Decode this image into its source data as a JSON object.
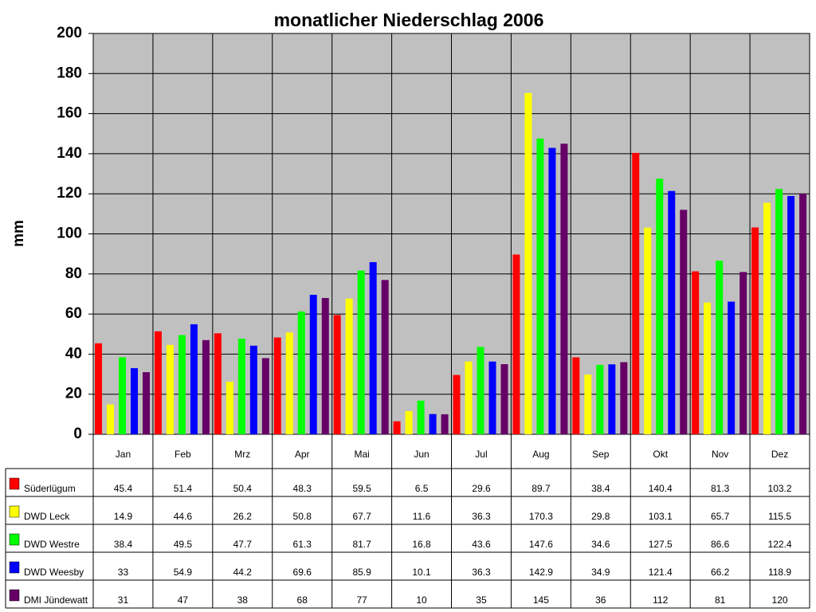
{
  "chart_data": {
    "type": "bar",
    "title": "monatlicher Niederschlag 2006",
    "y_label": "mm",
    "categories": [
      "Jan",
      "Feb",
      "Mrz",
      "Apr",
      "Mai",
      "Jun",
      "Jul",
      "Aug",
      "Sep",
      "Okt",
      "Nov",
      "Dez"
    ],
    "series": [
      {
        "name": "Süderlügum",
        "color": "#ff0000",
        "values": [
          45.4,
          51.4,
          50.4,
          48.3,
          59.5,
          6.5,
          29.6,
          89.7,
          38.4,
          140.4,
          81.3,
          103.2
        ]
      },
      {
        "name": "DWD Leck",
        "color": "#ffff00",
        "values": [
          14.9,
          44.6,
          26.2,
          50.8,
          67.7,
          11.6,
          36.3,
          170.3,
          29.8,
          103.1,
          65.7,
          115.5
        ]
      },
      {
        "name": "DWD Westre",
        "color": "#00ff00",
        "values": [
          38.4,
          49.5,
          47.7,
          61.3,
          81.7,
          16.8,
          43.6,
          147.6,
          34.6,
          127.5,
          86.6,
          122.4
        ]
      },
      {
        "name": "DWD Weesby",
        "color": "#0000ff",
        "values": [
          33,
          54.9,
          44.2,
          69.6,
          85.9,
          10.1,
          36.3,
          142.9,
          34.9,
          121.4,
          66.2,
          118.9
        ]
      },
      {
        "name": "DMI Jündewatt",
        "color": "#660066",
        "values": [
          31,
          47,
          38,
          68,
          77,
          10,
          35,
          145,
          36,
          112,
          81,
          120
        ]
      }
    ],
    "ylim": [
      0,
      200
    ],
    "yticks": [
      0,
      20,
      40,
      60,
      80,
      100,
      120,
      140,
      160,
      180,
      200
    ],
    "grid": true
  }
}
